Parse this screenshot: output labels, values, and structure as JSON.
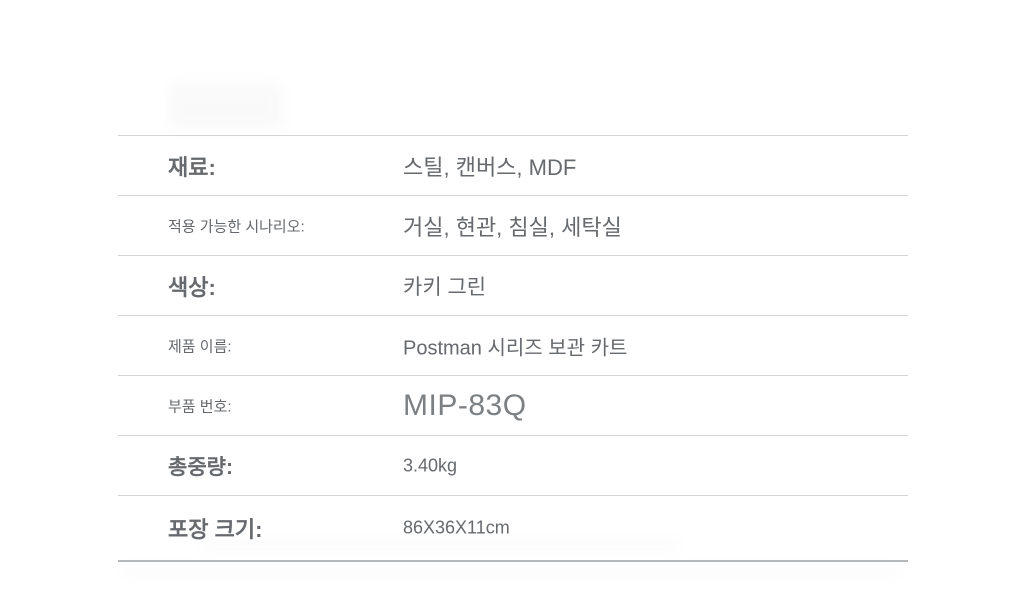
{
  "page": {
    "background": "#ffffff"
  },
  "colors": {
    "text": "#66696d",
    "text_light": "#7d8083",
    "divider": "#d4d4d4",
    "divider_bottom": "#b5b8ba"
  },
  "spec_table": {
    "rows": [
      {
        "label": "재료:",
        "value": "스틸, 캔버스, MDF"
      },
      {
        "label": "적용 가능한 시나리오:",
        "value": "거실, 현관, 침실, 세탁실"
      },
      {
        "label": "색상:",
        "value": "카키 그린"
      },
      {
        "label": "제품 이름:",
        "value": "Postman 시리즈 보관 카트"
      },
      {
        "label": "부품 번호:",
        "value": "MIP-83Q"
      },
      {
        "label": "총중량:",
        "value": "3.40kg"
      },
      {
        "label": "포장 크기:",
        "value": "86X36X11cm"
      }
    ]
  }
}
